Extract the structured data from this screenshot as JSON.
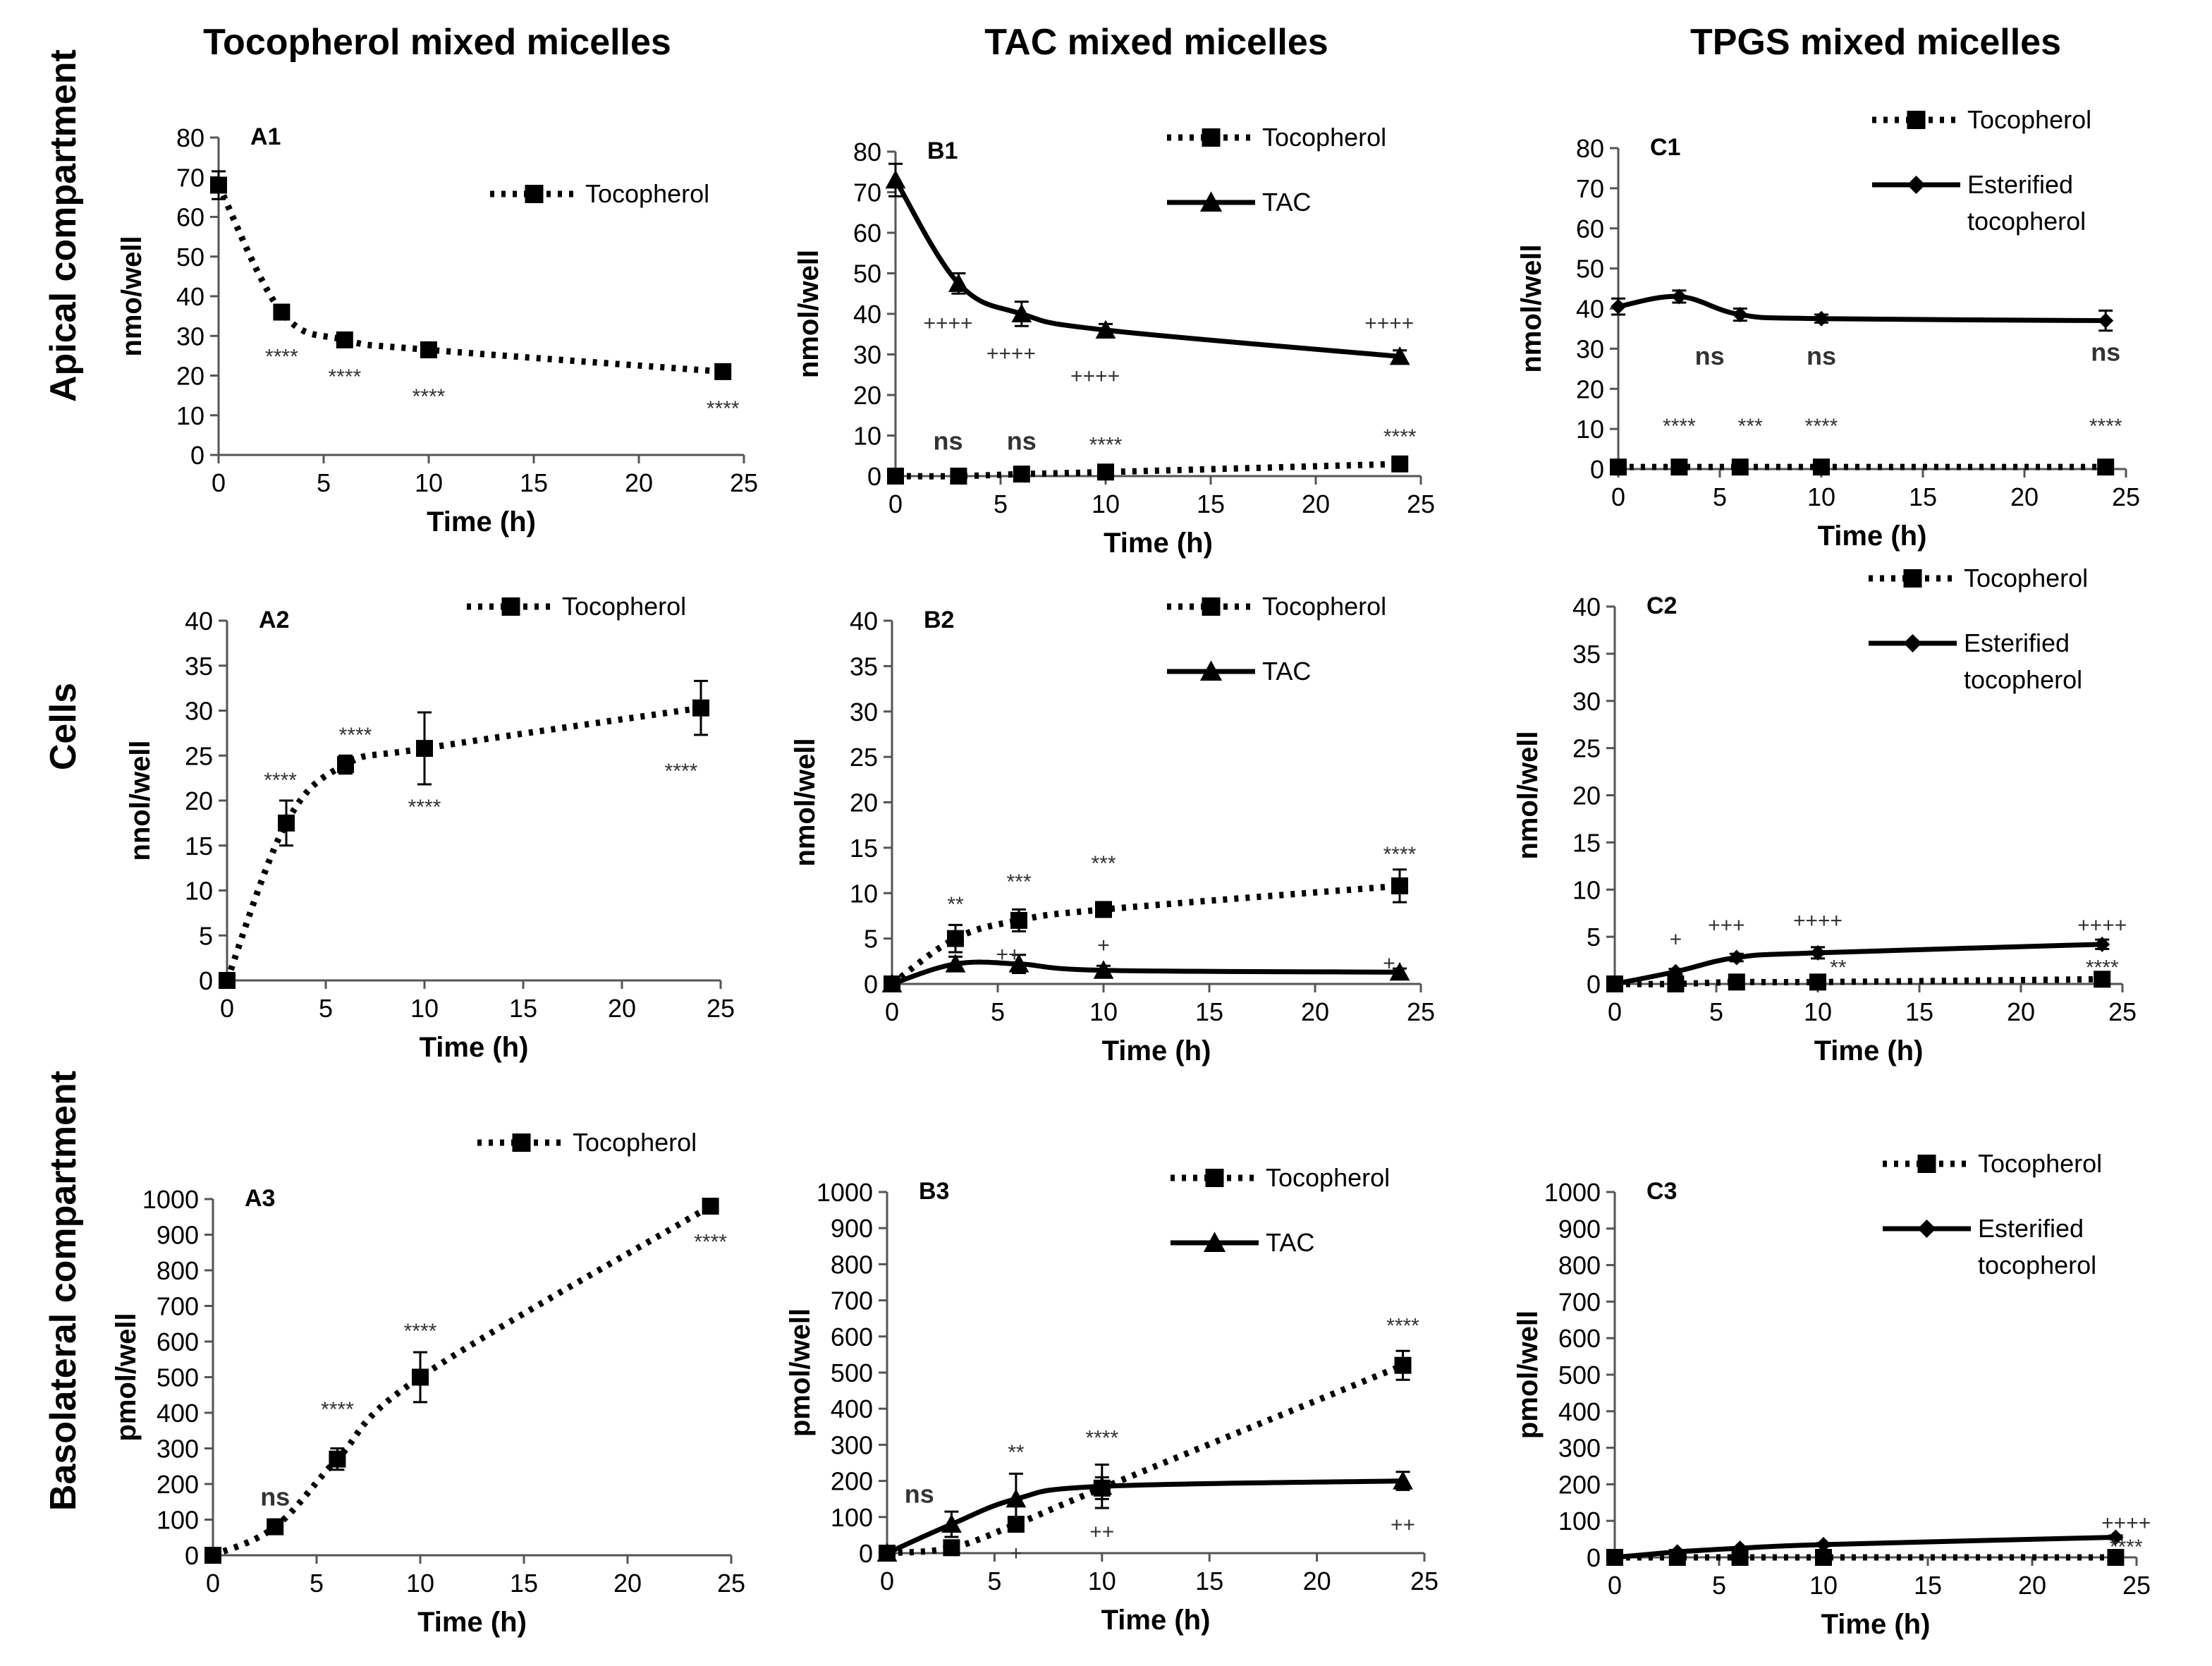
{
  "column_titles": [
    "Tocopherol mixed micelles",
    "TAC mixed micelles",
    "TPGS mixed micelles"
  ],
  "row_titles": [
    "Apical compartment",
    "Cells",
    "Basolateral compartment"
  ],
  "chart_data": [
    {
      "id": "A1",
      "type": "line",
      "panel_label": "A1",
      "xlabel": "Time (h)",
      "ylabel": "nmo/well",
      "xlim": [
        0,
        25
      ],
      "xticks": [
        0,
        5,
        10,
        15,
        20,
        25
      ],
      "ylim": [
        0,
        80
      ],
      "yticks": [
        0,
        10,
        20,
        30,
        40,
        50,
        60,
        70,
        80
      ],
      "legend_position": "top-right",
      "series": [
        {
          "name": "Tocopherol",
          "style": "dotted",
          "marker": "square",
          "x": [
            0,
            3,
            6,
            10,
            24
          ],
          "y": [
            68,
            36,
            29,
            26.5,
            21
          ],
          "err": [
            3.5,
            1,
            1,
            1,
            1
          ]
        }
      ],
      "annotations": [
        {
          "x": 3,
          "y": 23,
          "text": "****"
        },
        {
          "x": 6,
          "y": 18,
          "text": "****"
        },
        {
          "x": 10,
          "y": 13,
          "text": "****"
        },
        {
          "x": 24,
          "y": 10,
          "text": "****"
        }
      ]
    },
    {
      "id": "B1",
      "type": "line",
      "panel_label": "B1",
      "xlabel": "Time (h)",
      "ylabel": "nmol/well",
      "xlim": [
        0,
        25
      ],
      "xticks": [
        0,
        5,
        10,
        15,
        20,
        25
      ],
      "ylim": [
        0,
        80
      ],
      "yticks": [
        0,
        10,
        20,
        30,
        40,
        50,
        60,
        70,
        80
      ],
      "legend_position": "top-right",
      "series": [
        {
          "name": "Tocopherol",
          "style": "dotted",
          "marker": "square",
          "x": [
            0,
            3,
            6,
            10,
            24
          ],
          "y": [
            0,
            0,
            0.5,
            1,
            3
          ],
          "err": [
            0,
            0,
            0.5,
            0.5,
            1
          ]
        },
        {
          "name": "TAC",
          "style": "solid",
          "marker": "triangle",
          "x": [
            0,
            3,
            6,
            10,
            24
          ],
          "y": [
            73,
            47.5,
            40,
            36,
            29.5
          ],
          "err": [
            4,
            2.5,
            3,
            1.5,
            1.5
          ]
        }
      ],
      "annotations": [
        {
          "x": 2.5,
          "y": 36,
          "text": "++++"
        },
        {
          "x": 5.5,
          "y": 28.5,
          "text": "++++"
        },
        {
          "x": 9.5,
          "y": 23,
          "text": "++++"
        },
        {
          "x": 23.5,
          "y": 36,
          "text": "++++"
        },
        {
          "x": 2.5,
          "y": 6.5,
          "text": "ns",
          "bold": true
        },
        {
          "x": 6,
          "y": 6.5,
          "text": "ns",
          "bold": true
        },
        {
          "x": 10,
          "y": 6,
          "text": "****"
        },
        {
          "x": 24,
          "y": 8,
          "text": "****"
        }
      ]
    },
    {
      "id": "C1",
      "type": "line",
      "panel_label": "C1",
      "xlabel": "Time (h)",
      "ylabel": "nmol/well",
      "xlim": [
        0,
        25
      ],
      "xticks": [
        0,
        5,
        10,
        15,
        20,
        25
      ],
      "ylim": [
        0,
        80
      ],
      "yticks": [
        0,
        10,
        20,
        30,
        40,
        50,
        60,
        70,
        80
      ],
      "legend_position": "top-right",
      "series": [
        {
          "name": "Tocopherol",
          "style": "dotted",
          "marker": "square",
          "x": [
            0,
            3,
            6,
            10,
            24
          ],
          "y": [
            0.5,
            0.5,
            0.5,
            0.5,
            0.5
          ],
          "err": [
            0,
            0,
            0,
            0,
            0
          ]
        },
        {
          "name": "Esterified tocopherol",
          "style": "solid",
          "marker": "diamond",
          "x": [
            0,
            3,
            6,
            10,
            24
          ],
          "y": [
            40.5,
            43,
            38.5,
            37.5,
            37
          ],
          "err": [
            2,
            1.5,
            1.5,
            1,
            2.5
          ]
        }
      ],
      "annotations": [
        {
          "x": 4.5,
          "y": 26,
          "text": "ns",
          "bold": true
        },
        {
          "x": 10,
          "y": 26,
          "text": "ns",
          "bold": true
        },
        {
          "x": 24,
          "y": 27,
          "text": "ns",
          "bold": true
        },
        {
          "x": 3,
          "y": 9,
          "text": "****"
        },
        {
          "x": 6.5,
          "y": 9,
          "text": "***"
        },
        {
          "x": 10,
          "y": 9,
          "text": "****"
        },
        {
          "x": 24,
          "y": 9,
          "text": "****"
        }
      ]
    },
    {
      "id": "A2",
      "type": "line",
      "panel_label": "A2",
      "xlabel": "Time (h)",
      "ylabel": "nnol/well",
      "xlim": [
        0,
        25
      ],
      "xticks": [
        0,
        5,
        10,
        15,
        20,
        25
      ],
      "ylim": [
        0,
        40
      ],
      "yticks": [
        0,
        5,
        10,
        15,
        20,
        25,
        30,
        35,
        40
      ],
      "legend_position": "top-right",
      "series": [
        {
          "name": "Tocopherol",
          "style": "dotted",
          "marker": "square",
          "x": [
            0,
            3,
            6,
            10,
            24
          ],
          "y": [
            0,
            17.5,
            24,
            25.8,
            30.3
          ],
          "err": [
            0,
            2.5,
            1,
            4,
            3
          ]
        }
      ],
      "annotations": [
        {
          "x": 2.7,
          "y": 21.5,
          "text": "****"
        },
        {
          "x": 6.5,
          "y": 26.5,
          "text": "****"
        },
        {
          "x": 10,
          "y": 18.5,
          "text": "****"
        },
        {
          "x": 23,
          "y": 22.5,
          "text": "****"
        }
      ]
    },
    {
      "id": "B2",
      "type": "line",
      "panel_label": "B2",
      "xlabel": "Time (h)",
      "ylabel": "nmol/well",
      "xlim": [
        0,
        25
      ],
      "xticks": [
        0,
        5,
        10,
        15,
        20,
        25
      ],
      "ylim": [
        0,
        40
      ],
      "yticks": [
        0,
        5,
        10,
        15,
        20,
        25,
        30,
        35,
        40
      ],
      "legend_position": "top-right",
      "series": [
        {
          "name": "Tocopherol",
          "style": "dotted",
          "marker": "square",
          "x": [
            0,
            3,
            6,
            10,
            24
          ],
          "y": [
            0,
            5,
            7,
            8.2,
            10.8
          ],
          "err": [
            0,
            1.5,
            1.2,
            0.8,
            1.8
          ]
        },
        {
          "name": "TAC",
          "style": "solid",
          "marker": "triangle",
          "x": [
            0,
            3,
            6,
            10,
            24
          ],
          "y": [
            0,
            2.2,
            2.2,
            1.5,
            1.3
          ],
          "err": [
            0,
            0.8,
            1,
            0.5,
            0.4
          ]
        }
      ],
      "annotations": [
        {
          "x": 3,
          "y": 8,
          "text": "**"
        },
        {
          "x": 6,
          "y": 10.5,
          "text": "***"
        },
        {
          "x": 10,
          "y": 12.5,
          "text": "***"
        },
        {
          "x": 24,
          "y": 13.5,
          "text": "****"
        },
        {
          "x": 5.5,
          "y": 2.5,
          "text": "++"
        },
        {
          "x": 10,
          "y": 3.5,
          "text": "+"
        },
        {
          "x": 23.5,
          "y": 1.5,
          "text": "+"
        }
      ]
    },
    {
      "id": "C2",
      "type": "line",
      "panel_label": "C2",
      "xlabel": "Time (h)",
      "ylabel": "nmol/well",
      "xlim": [
        0,
        25
      ],
      "xticks": [
        0,
        5,
        10,
        15,
        20,
        25
      ],
      "ylim": [
        0,
        40
      ],
      "yticks": [
        0,
        5,
        10,
        15,
        20,
        25,
        30,
        35,
        40
      ],
      "legend_position": "top-right",
      "series": [
        {
          "name": "Tocopherol",
          "style": "dotted",
          "marker": "square",
          "x": [
            0,
            3,
            6,
            10,
            24
          ],
          "y": [
            0,
            0,
            0.2,
            0.2,
            0.5
          ],
          "err": [
            0,
            0,
            0,
            0,
            0
          ]
        },
        {
          "name": "Esterified tocopherol",
          "style": "solid",
          "marker": "diamond",
          "x": [
            0,
            3,
            6,
            10,
            24
          ],
          "y": [
            0,
            1.3,
            2.8,
            3.3,
            4.2
          ],
          "err": [
            0,
            0.3,
            0.4,
            0.6,
            0.5
          ]
        }
      ],
      "annotations": [
        {
          "x": 3,
          "y": 4,
          "text": "+"
        },
        {
          "x": 5.5,
          "y": 5.5,
          "text": "+++"
        },
        {
          "x": 10,
          "y": 6,
          "text": "++++"
        },
        {
          "x": 24,
          "y": 5.5,
          "text": "++++"
        },
        {
          "x": 11,
          "y": 1,
          "text": "**"
        },
        {
          "x": 24,
          "y": 1,
          "text": "****"
        }
      ]
    },
    {
      "id": "A3",
      "type": "line",
      "panel_label": "A3",
      "xlabel": "Time (h)",
      "ylabel": "pmol/well",
      "xlim": [
        0,
        25
      ],
      "xticks": [
        0,
        5,
        10,
        15,
        20,
        25
      ],
      "ylim": [
        0,
        1000
      ],
      "yticks": [
        0,
        100,
        200,
        300,
        400,
        500,
        600,
        700,
        800,
        900,
        1000
      ],
      "legend_position": "top-right",
      "series": [
        {
          "name": "Tocopherol",
          "style": "dotted",
          "marker": "square",
          "x": [
            0,
            3,
            6,
            10,
            24
          ],
          "y": [
            0,
            80,
            270,
            500,
            980
          ],
          "err": [
            0,
            10,
            30,
            70,
            20
          ]
        }
      ],
      "annotations": [
        {
          "x": 3,
          "y": 140,
          "text": "ns",
          "bold": true
        },
        {
          "x": 6,
          "y": 390,
          "text": "****"
        },
        {
          "x": 10,
          "y": 610,
          "text": "****"
        },
        {
          "x": 24,
          "y": 860,
          "text": "****"
        }
      ]
    },
    {
      "id": "B3",
      "type": "line",
      "panel_label": "B3",
      "xlabel": "Time (h)",
      "ylabel": "pmol/well",
      "xlim": [
        0,
        25
      ],
      "xticks": [
        0,
        5,
        10,
        15,
        20,
        25
      ],
      "ylim": [
        0,
        1000
      ],
      "yticks": [
        0,
        100,
        200,
        300,
        400,
        500,
        600,
        700,
        800,
        900,
        1000
      ],
      "legend_position": "top-right",
      "series": [
        {
          "name": "Tocopherol",
          "style": "dotted",
          "marker": "square",
          "x": [
            0,
            3,
            6,
            10,
            24
          ],
          "y": [
            0,
            15,
            80,
            180,
            520
          ],
          "err": [
            0,
            5,
            20,
            30,
            40
          ]
        },
        {
          "name": "TAC",
          "style": "solid",
          "marker": "triangle",
          "x": [
            0,
            3,
            6,
            10,
            24
          ],
          "y": [
            0,
            80,
            150,
            185,
            200
          ],
          "err": [
            0,
            35,
            70,
            60,
            25
          ]
        }
      ],
      "annotations": [
        {
          "x": 1.5,
          "y": 140,
          "text": "ns",
          "bold": true
        },
        {
          "x": 6,
          "y": 260,
          "text": "**"
        },
        {
          "x": 10,
          "y": 300,
          "text": "****"
        },
        {
          "x": 24,
          "y": 610,
          "text": "****"
        },
        {
          "x": 6,
          "y": -20,
          "text": "+"
        },
        {
          "x": 10,
          "y": 40,
          "text": "++"
        },
        {
          "x": 24,
          "y": 60,
          "text": "++"
        }
      ]
    },
    {
      "id": "C3",
      "type": "line",
      "panel_label": "C3",
      "xlabel": "Time (h)",
      "ylabel": "pmol/well",
      "xlim": [
        0,
        25
      ],
      "xticks": [
        0,
        5,
        10,
        15,
        20,
        25
      ],
      "ylim": [
        0,
        1000
      ],
      "yticks": [
        0,
        100,
        200,
        300,
        400,
        500,
        600,
        700,
        800,
        900,
        1000
      ],
      "legend_position": "top-right",
      "series": [
        {
          "name": "Tocopherol",
          "style": "dotted",
          "marker": "square",
          "x": [
            0,
            3,
            6,
            10,
            24
          ],
          "y": [
            0,
            0,
            0,
            0,
            0
          ],
          "err": [
            0,
            0,
            0,
            0,
            0
          ]
        },
        {
          "name": "Esterified tocopherol",
          "style": "solid",
          "marker": "diamond",
          "x": [
            0,
            3,
            6,
            10,
            24
          ],
          "y": [
            0,
            15,
            25,
            35,
            55
          ],
          "err": [
            0,
            3,
            3,
            4,
            5
          ]
        }
      ],
      "annotations": [
        {
          "x": 24.5,
          "y": 75,
          "text": "++++"
        },
        {
          "x": 24.5,
          "y": 10,
          "text": "****"
        }
      ]
    }
  ]
}
